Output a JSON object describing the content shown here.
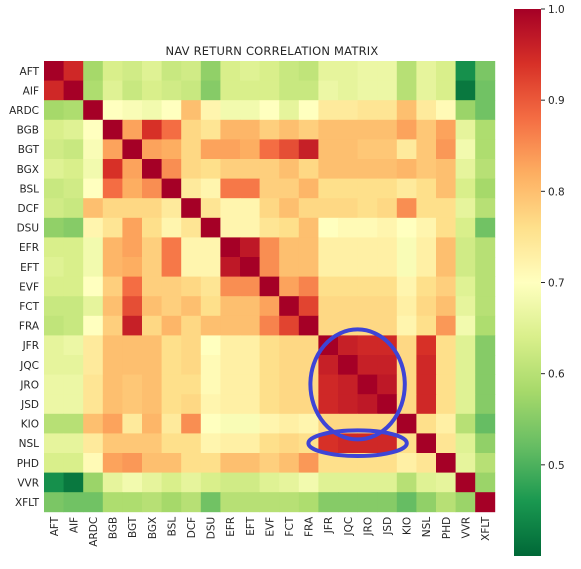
{
  "chart_data": {
    "type": "heatmap",
    "title": "NAV RETURN CORRELATION MATRIX",
    "labels": [
      "AFT",
      "AIF",
      "ARDC",
      "BGB",
      "BGT",
      "BGX",
      "BSL",
      "DCF",
      "DSU",
      "EFR",
      "EFT",
      "EVF",
      "FCT",
      "FRA",
      "JFR",
      "JQC",
      "JRO",
      "JSD",
      "KIO",
      "NSL",
      "PHD",
      "VVR",
      "XFLT"
    ],
    "values": [
      [
        1.0,
        0.95,
        0.58,
        0.64,
        0.63,
        0.65,
        0.62,
        0.63,
        0.56,
        0.64,
        0.65,
        0.64,
        0.62,
        0.61,
        0.66,
        0.66,
        0.67,
        0.67,
        0.6,
        0.66,
        0.64,
        0.45,
        0.54
      ],
      [
        0.95,
        1.0,
        0.59,
        0.65,
        0.62,
        0.64,
        0.63,
        0.62,
        0.55,
        0.64,
        0.64,
        0.64,
        0.62,
        0.62,
        0.67,
        0.66,
        0.67,
        0.67,
        0.6,
        0.66,
        0.64,
        0.42,
        0.53
      ],
      [
        0.58,
        0.59,
        1.0,
        0.7,
        0.69,
        0.68,
        0.7,
        0.8,
        0.72,
        0.68,
        0.68,
        0.7,
        0.66,
        0.7,
        0.74,
        0.74,
        0.75,
        0.75,
        0.8,
        0.74,
        0.71,
        0.57,
        0.53
      ],
      [
        0.64,
        0.65,
        0.7,
        1.0,
        0.83,
        0.94,
        0.88,
        0.77,
        0.75,
        0.81,
        0.81,
        0.78,
        0.8,
        0.78,
        0.8,
        0.8,
        0.8,
        0.8,
        0.83,
        0.79,
        0.83,
        0.66,
        0.59
      ],
      [
        0.63,
        0.62,
        0.69,
        0.83,
        1.0,
        0.83,
        0.82,
        0.77,
        0.83,
        0.83,
        0.82,
        0.88,
        0.91,
        0.96,
        0.8,
        0.8,
        0.79,
        0.79,
        0.74,
        0.79,
        0.84,
        0.68,
        0.59
      ],
      [
        0.65,
        0.64,
        0.68,
        0.94,
        0.83,
        1.0,
        0.85,
        0.77,
        0.76,
        0.78,
        0.78,
        0.78,
        0.8,
        0.77,
        0.8,
        0.8,
        0.8,
        0.8,
        0.81,
        0.79,
        0.8,
        0.66,
        0.6
      ],
      [
        0.62,
        0.63,
        0.7,
        0.88,
        0.82,
        0.85,
        1.0,
        0.74,
        0.72,
        0.87,
        0.87,
        0.78,
        0.78,
        0.81,
        0.76,
        0.76,
        0.76,
        0.76,
        0.74,
        0.76,
        0.8,
        0.64,
        0.58
      ],
      [
        0.63,
        0.62,
        0.8,
        0.77,
        0.77,
        0.77,
        0.74,
        1.0,
        0.75,
        0.72,
        0.72,
        0.77,
        0.8,
        0.77,
        0.77,
        0.77,
        0.76,
        0.77,
        0.85,
        0.76,
        0.76,
        0.66,
        0.6
      ],
      [
        0.56,
        0.55,
        0.72,
        0.75,
        0.83,
        0.76,
        0.72,
        0.75,
        1.0,
        0.72,
        0.72,
        0.75,
        0.76,
        0.8,
        0.7,
        0.71,
        0.71,
        0.72,
        0.7,
        0.72,
        0.76,
        0.64,
        0.53
      ],
      [
        0.64,
        0.64,
        0.68,
        0.81,
        0.83,
        0.78,
        0.87,
        0.72,
        0.72,
        1.0,
        0.97,
        0.85,
        0.8,
        0.8,
        0.73,
        0.73,
        0.73,
        0.73,
        0.69,
        0.73,
        0.8,
        0.63,
        0.6
      ],
      [
        0.65,
        0.64,
        0.68,
        0.81,
        0.82,
        0.78,
        0.87,
        0.72,
        0.72,
        0.97,
        1.0,
        0.85,
        0.8,
        0.8,
        0.73,
        0.73,
        0.73,
        0.73,
        0.69,
        0.73,
        0.8,
        0.63,
        0.6
      ],
      [
        0.64,
        0.64,
        0.7,
        0.78,
        0.88,
        0.78,
        0.78,
        0.77,
        0.75,
        0.85,
        0.85,
        1.0,
        0.83,
        0.86,
        0.76,
        0.76,
        0.76,
        0.76,
        0.72,
        0.76,
        0.78,
        0.65,
        0.6
      ],
      [
        0.62,
        0.62,
        0.66,
        0.8,
        0.91,
        0.8,
        0.78,
        0.8,
        0.76,
        0.8,
        0.8,
        0.83,
        1.0,
        0.92,
        0.77,
        0.77,
        0.77,
        0.77,
        0.73,
        0.77,
        0.8,
        0.66,
        0.6
      ],
      [
        0.61,
        0.62,
        0.7,
        0.78,
        0.96,
        0.77,
        0.81,
        0.77,
        0.8,
        0.8,
        0.8,
        0.86,
        0.92,
        1.0,
        0.77,
        0.77,
        0.77,
        0.77,
        0.72,
        0.76,
        0.84,
        0.68,
        0.59
      ],
      [
        0.66,
        0.67,
        0.74,
        0.8,
        0.8,
        0.8,
        0.76,
        0.77,
        0.7,
        0.73,
        0.73,
        0.76,
        0.77,
        0.77,
        1.0,
        0.96,
        0.95,
        0.95,
        0.77,
        0.94,
        0.76,
        0.65,
        0.55
      ],
      [
        0.66,
        0.66,
        0.74,
        0.8,
        0.8,
        0.8,
        0.76,
        0.77,
        0.71,
        0.73,
        0.73,
        0.76,
        0.77,
        0.77,
        0.96,
        1.0,
        0.96,
        0.96,
        0.77,
        0.95,
        0.76,
        0.65,
        0.55
      ],
      [
        0.67,
        0.67,
        0.75,
        0.8,
        0.79,
        0.8,
        0.76,
        0.76,
        0.71,
        0.73,
        0.73,
        0.76,
        0.77,
        0.77,
        0.95,
        0.96,
        1.0,
        0.97,
        0.77,
        0.95,
        0.76,
        0.65,
        0.55
      ],
      [
        0.67,
        0.67,
        0.75,
        0.8,
        0.79,
        0.8,
        0.76,
        0.77,
        0.72,
        0.73,
        0.73,
        0.76,
        0.77,
        0.77,
        0.95,
        0.96,
        0.97,
        1.0,
        0.77,
        0.95,
        0.76,
        0.65,
        0.55
      ],
      [
        0.6,
        0.6,
        0.8,
        0.83,
        0.74,
        0.81,
        0.74,
        0.85,
        0.7,
        0.69,
        0.69,
        0.72,
        0.73,
        0.72,
        0.77,
        0.77,
        0.77,
        0.77,
        1.0,
        0.76,
        0.73,
        0.6,
        0.52
      ],
      [
        0.66,
        0.66,
        0.74,
        0.79,
        0.79,
        0.79,
        0.76,
        0.76,
        0.72,
        0.73,
        0.73,
        0.76,
        0.77,
        0.76,
        0.94,
        0.95,
        0.95,
        0.95,
        0.76,
        1.0,
        0.75,
        0.65,
        0.56
      ],
      [
        0.64,
        0.64,
        0.71,
        0.83,
        0.84,
        0.8,
        0.8,
        0.76,
        0.76,
        0.8,
        0.8,
        0.78,
        0.8,
        0.84,
        0.76,
        0.76,
        0.76,
        0.76,
        0.73,
        0.75,
        1.0,
        0.66,
        0.6
      ],
      [
        0.45,
        0.42,
        0.57,
        0.66,
        0.68,
        0.66,
        0.64,
        0.66,
        0.64,
        0.63,
        0.63,
        0.65,
        0.66,
        0.68,
        0.65,
        0.65,
        0.65,
        0.65,
        0.6,
        0.65,
        0.66,
        1.0,
        0.57
      ],
      [
        0.54,
        0.53,
        0.53,
        0.59,
        0.59,
        0.6,
        0.58,
        0.6,
        0.53,
        0.6,
        0.6,
        0.6,
        0.6,
        0.59,
        0.55,
        0.55,
        0.55,
        0.55,
        0.52,
        0.56,
        0.6,
        0.57,
        1.0
      ]
    ],
    "colorbar": {
      "min": 0.4,
      "max": 1.0,
      "ticks": [
        0.5,
        0.6,
        0.7,
        0.8,
        0.9,
        1.0
      ],
      "tick_labels": [
        "0.5",
        "0.6",
        "0.7",
        "0.8",
        "0.9",
        "1.0"
      ],
      "colormap": "RdYlGn_r"
    },
    "annotations": [
      {
        "shape": "ellipse",
        "color": "#3e44d6",
        "rows": [
          "JFR",
          "KIO"
        ],
        "cols": [
          "JFR",
          "JSD"
        ]
      },
      {
        "shape": "ellipse",
        "color": "#3e44d6",
        "rows": [
          "NSL",
          "NSL"
        ],
        "cols": [
          "JFR",
          "JSD"
        ]
      }
    ]
  }
}
